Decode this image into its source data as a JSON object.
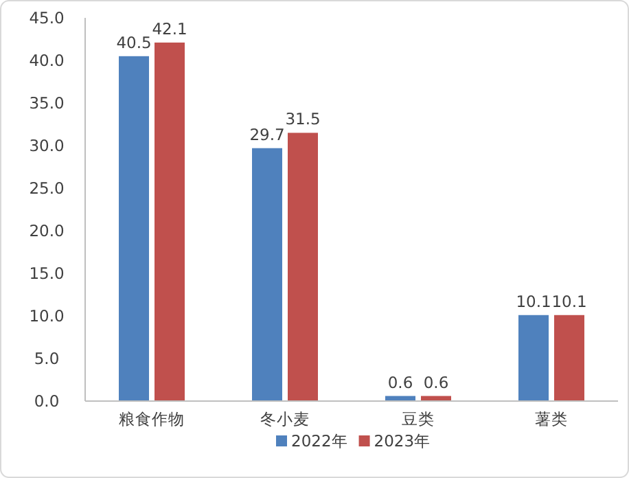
{
  "chart_data": {
    "type": "bar",
    "categories": [
      "粮食作物",
      "冬小麦",
      "豆类",
      "薯类"
    ],
    "series": [
      {
        "name": "2022年",
        "color": "#4f81bd",
        "values": [
          40.5,
          29.7,
          0.6,
          10.1
        ]
      },
      {
        "name": "2023年",
        "color": "#c0504d",
        "values": [
          42.1,
          31.5,
          0.6,
          10.1
        ]
      }
    ],
    "ylim": [
      0,
      45
    ],
    "yticks": [
      {
        "value": 0,
        "label": "0.0"
      },
      {
        "value": 5,
        "label": "5.0"
      },
      {
        "value": 10,
        "label": "10.0"
      },
      {
        "value": 15,
        "label": "15.0"
      },
      {
        "value": 20,
        "label": "20.0"
      },
      {
        "value": 25,
        "label": "25.0"
      },
      {
        "value": 30,
        "label": "30.0"
      },
      {
        "value": 35,
        "label": "35.0"
      },
      {
        "value": 40,
        "label": "40.0"
      },
      {
        "value": 45,
        "label": "45.0"
      }
    ],
    "data_labels": true,
    "grid": false,
    "legend": "bottom"
  }
}
